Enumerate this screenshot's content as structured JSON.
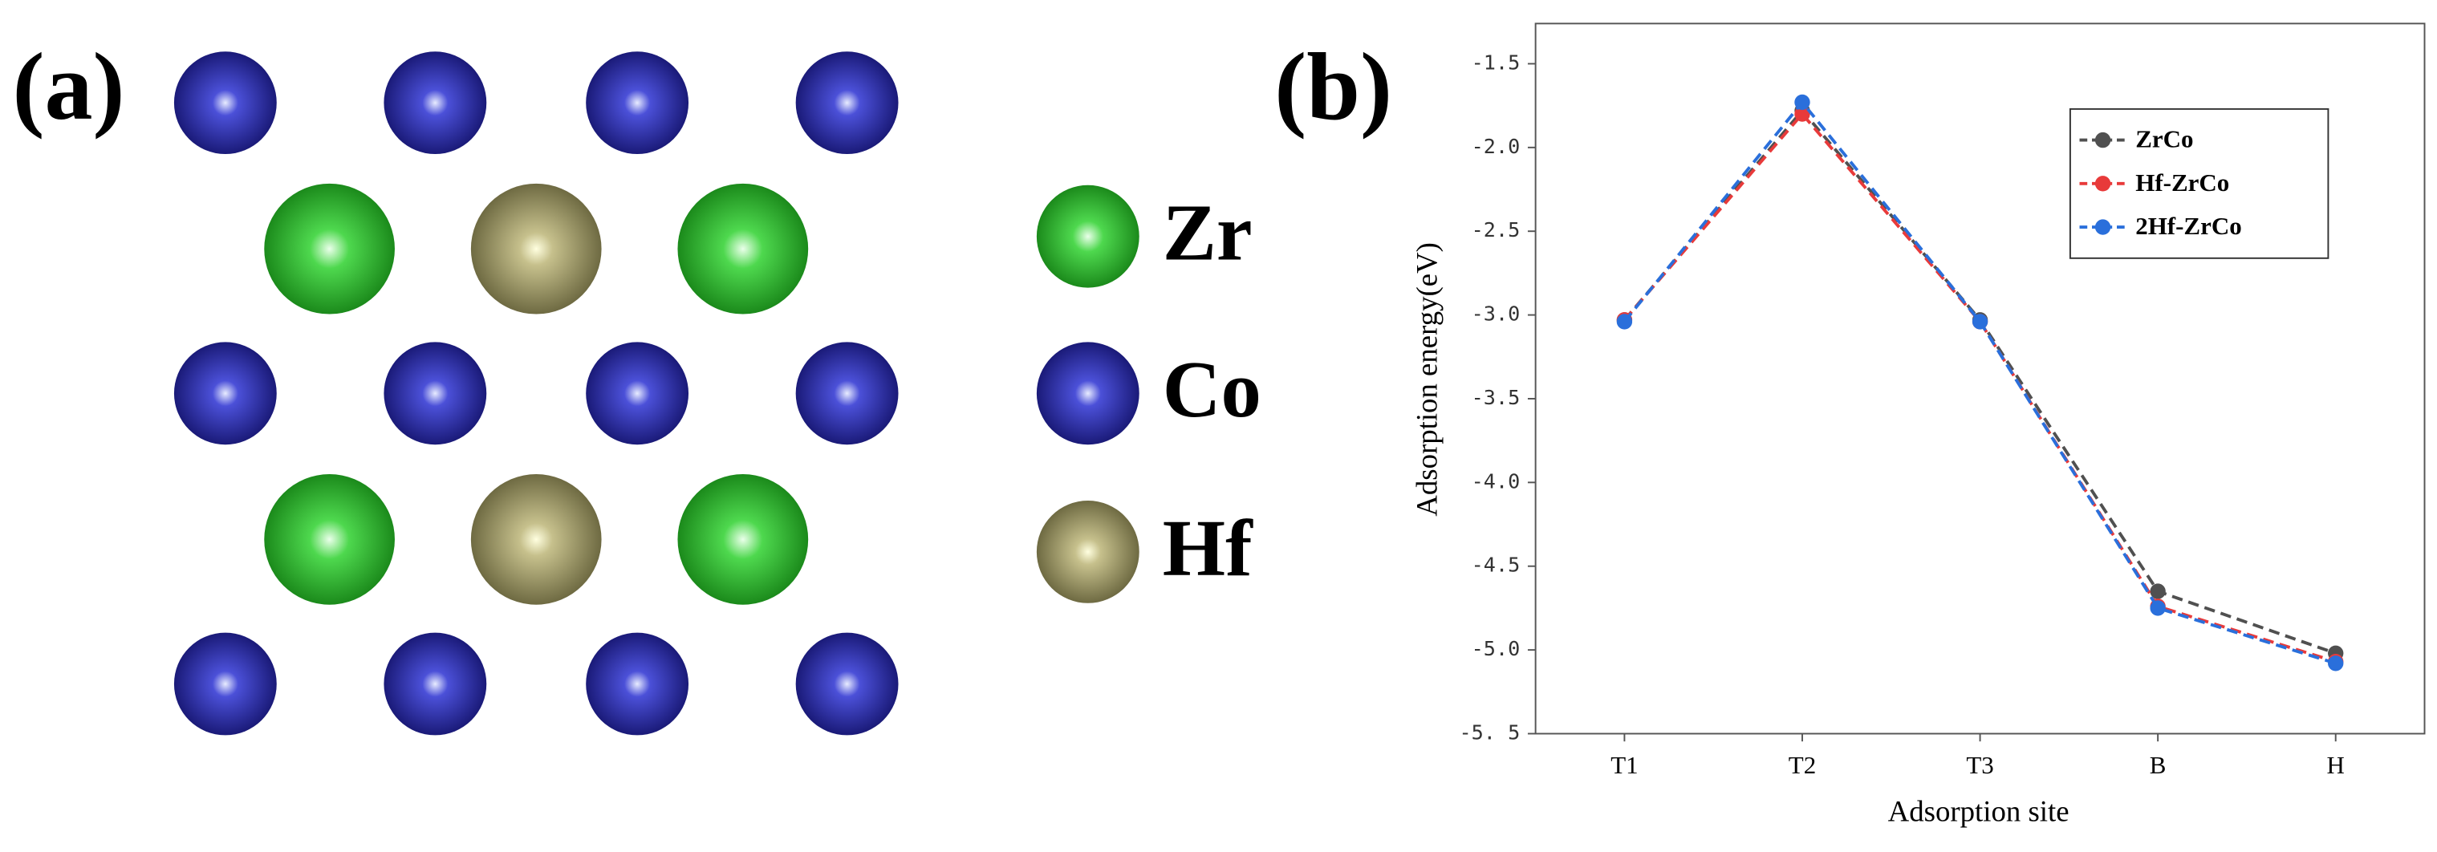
{
  "panel_a": {
    "label": "(a)",
    "legend": [
      "Zr",
      "Co",
      "Hf"
    ]
  },
  "panel_b_label": "(b)",
  "chart_data": {
    "type": "line",
    "x_label": "Adsorption site",
    "y_label": "Adsorption energy(eV)",
    "categories": [
      "T1",
      "T2",
      "T3",
      "B",
      "H"
    ],
    "series": [
      {
        "name": "ZrCo",
        "color": "#505050",
        "values": [
          -3.03,
          -1.78,
          -3.03,
          -4.65,
          -5.02
        ]
      },
      {
        "name": "Hf-ZrCo",
        "color": "#e83a3a",
        "values": [
          -3.03,
          -1.8,
          -3.04,
          -4.74,
          -5.07
        ]
      },
      {
        "name": "2Hf-ZrCo",
        "color": "#2a6fdb",
        "values": [
          -3.04,
          -1.73,
          -3.04,
          -4.75,
          -5.08
        ]
      }
    ],
    "ylim": [
      -5.5,
      -1.26
    ],
    "yticks": [
      {
        "value": -5.5,
        "label": "-5. 5"
      },
      {
        "value": -5,
        "label": "-5.0"
      },
      -4.5,
      {
        "value": -4,
        "label": "-4.0"
      },
      -3.5,
      {
        "value": -3,
        "label": "-3.0"
      },
      -2.5,
      {
        "value": -2,
        "label": "-2.0"
      },
      -1.5
    ],
    "line_style": "dashed",
    "legend": "upper right",
    "grid": false
  }
}
